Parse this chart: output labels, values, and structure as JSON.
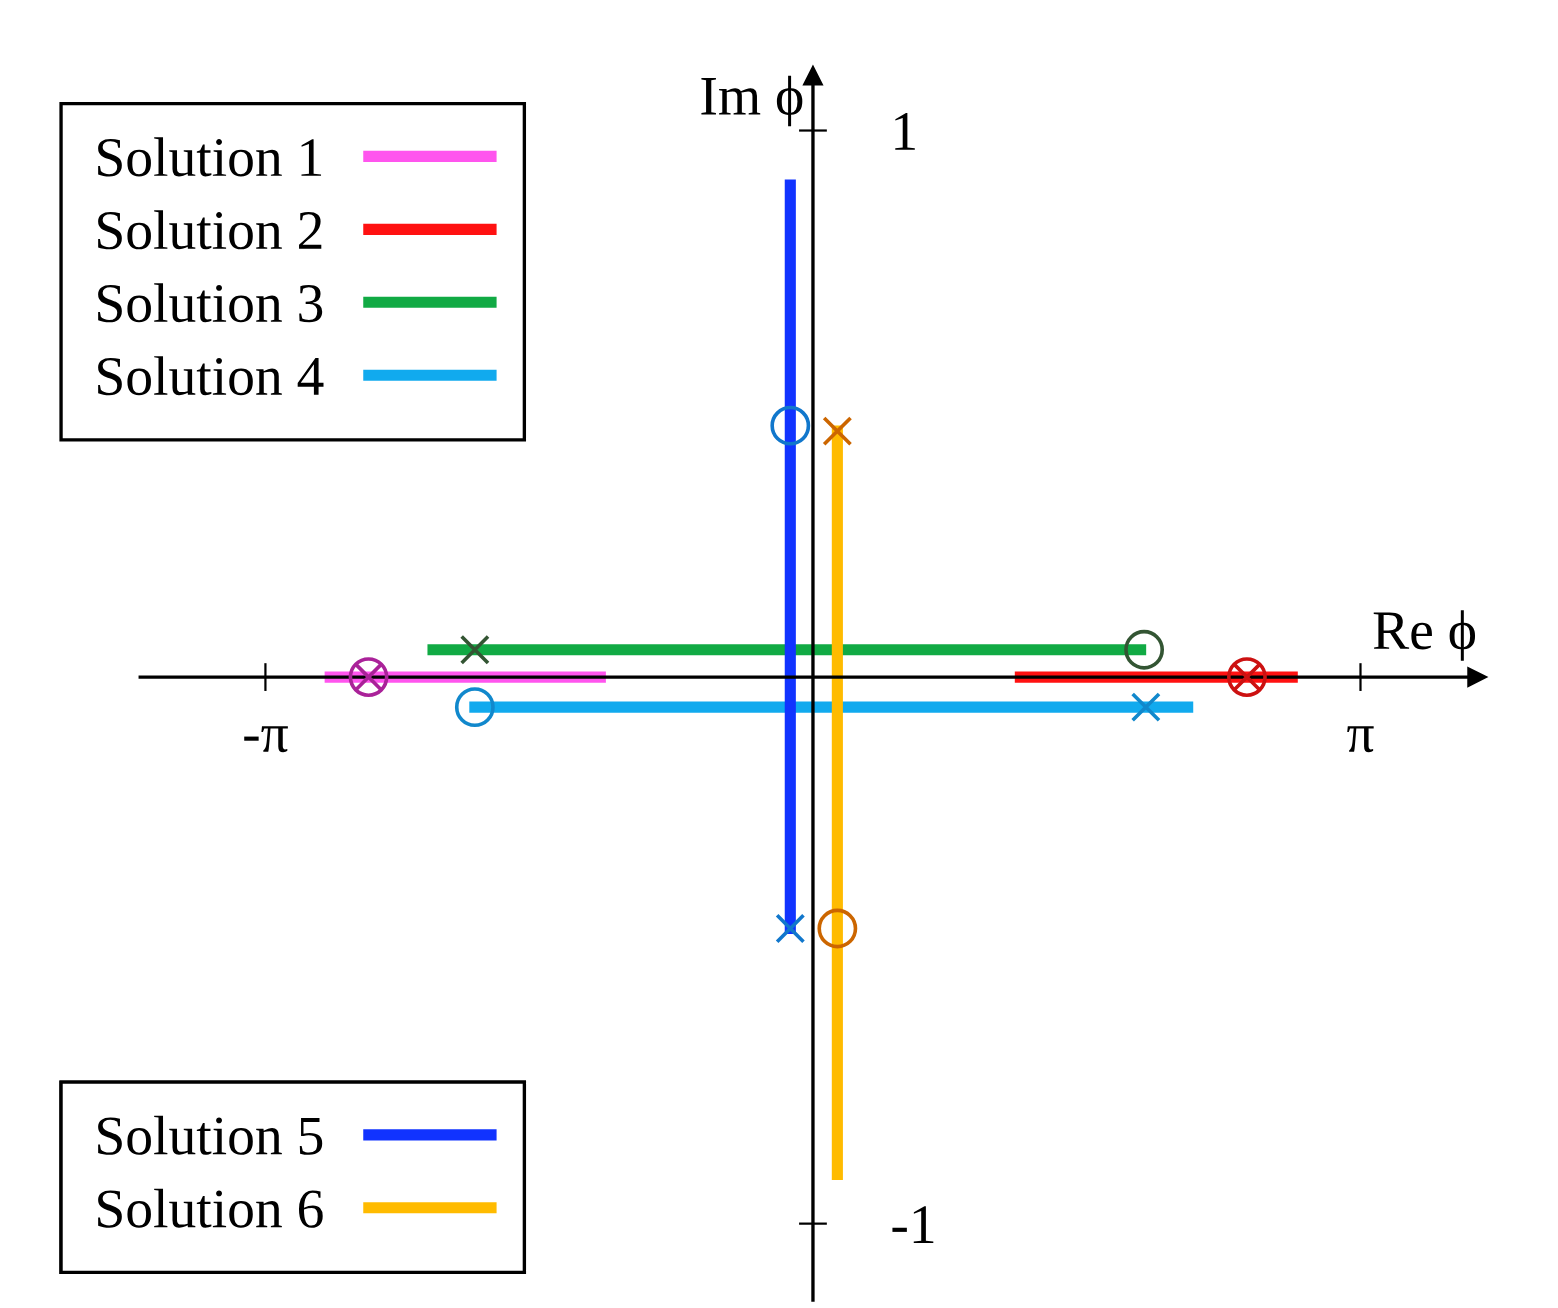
{
  "chart_data": {
    "type": "line",
    "xlabel": "Re ϕ",
    "ylabel": "Im ϕ",
    "xlim": [
      -3.86,
      3.81
    ],
    "ylim": [
      -1.14,
      1.1
    ],
    "xticks": [
      {
        "value": -3.14159,
        "label": "-π"
      },
      {
        "value": 3.14159,
        "label": "π"
      }
    ],
    "yticks": [
      1,
      -1
    ],
    "grid": false,
    "line_style": "solid",
    "legend": "left",
    "series": [
      {
        "name": "Solution 1",
        "color": "#ff55ee",
        "x": [
          -2.77,
          -1.22
        ],
        "values": [
          0,
          0
        ]
      },
      {
        "name": "Solution 2",
        "color": "#ff1111",
        "x": [
          1.19,
          2.75
        ],
        "values": [
          0,
          0
        ]
      },
      {
        "name": "Solution 3",
        "color": "#11aa44",
        "x": [
          -2.18,
          1.88
        ],
        "values": [
          0.05,
          0.05
        ]
      },
      {
        "name": "Solution 4",
        "color": "#11aaee",
        "x": [
          -1.94,
          2.15
        ],
        "values": [
          -0.055,
          -0.055
        ]
      },
      {
        "name": "Solution 5",
        "color": "#1133ff",
        "x": [
          -0.13,
          -0.13
        ],
        "values": [
          0.9,
          -0.46
        ]
      },
      {
        "name": "Solution 6",
        "color": "#ffbb00",
        "x": [
          0.14,
          0.14
        ],
        "values": [
          0.45,
          -0.91
        ]
      },
      {
        "type": "scatter",
        "marker": "cross",
        "colors": [
          "#aa2299",
          "#cc1111",
          "#335533",
          "#1188cc",
          "#1177cc",
          "#cc6600"
        ],
        "x": [
          -2.55,
          2.49,
          -1.94,
          1.91,
          -0.13,
          0.14
        ],
        "values": [
          0,
          0,
          0.05,
          -0.055,
          -0.46,
          0.45
        ]
      },
      {
        "type": "scatter",
        "marker": "circle",
        "colors": [
          "#aa2299",
          "#cc1111",
          "#335533",
          "#1188cc",
          "#1177cc",
          "#cc6600"
        ],
        "x": [
          -2.55,
          2.49,
          1.9,
          -1.94,
          -0.13,
          0.14
        ],
        "values": [
          0,
          0,
          0.05,
          -0.055,
          0.46,
          -0.46
        ]
      }
    ]
  }
}
